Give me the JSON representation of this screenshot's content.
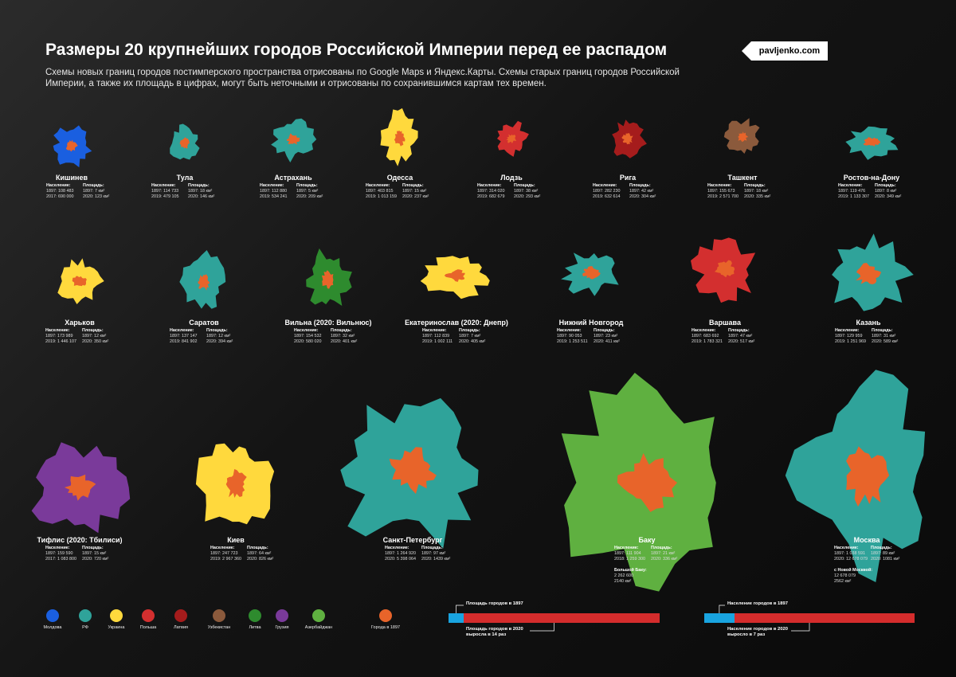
{
  "header": {
    "title": "Размеры 20 крупнейших городов Российской Империи перед ее распадом",
    "subtitle": "Схемы новых границ городов постимперского пространства отрисованы по Google Maps и Яндекс.Карты. Схемы старых границ городов Российской Империи, а также их площадь в цифрах, могут быть неточными и отрисованы по сохранившимся картам тех времен.",
    "brand": "pavljenko.com"
  },
  "colors": {
    "moldova": "#1a5fe0",
    "rf": "#2fa39a",
    "ukraine": "#ffd93d",
    "poland": "#d32f2f",
    "latvia": "#a51c1c",
    "uzbekistan": "#8b5a3c",
    "lithuania": "#2e8b2e",
    "georgia": "#7a3a9a",
    "azerbaijan": "#5fb040",
    "city1897": "#e8642a"
  },
  "labels": {
    "population": "Население:",
    "area": "Площадь:"
  },
  "cities": [
    {
      "name": "Кишинев",
      "country": "moldova",
      "pop1897": "1897: 108 483",
      "popNow": "2017: 690 000",
      "area1897": "1897: 7 км²",
      "areaNow": "2020: 123 км²"
    },
    {
      "name": "Тула",
      "country": "rf",
      "pop1897": "1897: 114 733",
      "popNow": "2019: 479 105",
      "area1897": "1897: 18 км²",
      "areaNow": "2020: 146 км²"
    },
    {
      "name": "Астрахань",
      "country": "rf",
      "pop1897": "1897: 112 880",
      "popNow": "2019: 534 241",
      "area1897": "1897: 5 км²",
      "areaNow": "2020: 209 км²"
    },
    {
      "name": "Одесса",
      "country": "ukraine",
      "pop1897": "1897: 403 815",
      "popNow": "2019: 1 013 159",
      "area1897": "1897: 15 км²",
      "areaNow": "2020: 237 км²"
    },
    {
      "name": "Лодзь",
      "country": "poland",
      "pop1897": "1897: 314 020",
      "popNow": "2019: 682 679",
      "area1897": "1897: 38 км²",
      "areaNow": "2020: 293 км²"
    },
    {
      "name": "Рига",
      "country": "latvia",
      "pop1897": "1897: 282 230",
      "popNow": "2019: 632 614",
      "area1897": "1897: 42 км²",
      "areaNow": "2020: 304 км²"
    },
    {
      "name": "Ташкент",
      "country": "uzbekistan",
      "pop1897": "1897: 155 673",
      "popNow": "2019: 2 571 700",
      "area1897": "1897: 18 км²",
      "areaNow": "2020: 335 км²"
    },
    {
      "name": "Ростов-на-Дону",
      "country": "rf",
      "pop1897": "1897: 119 476",
      "popNow": "2019: 1 133 307",
      "area1897": "1897: 8 км²",
      "areaNow": "2020: 349 км²"
    },
    {
      "name": "Харьков",
      "country": "ukraine",
      "pop1897": "1897: 173 989",
      "popNow": "2019: 1 446 107",
      "area1897": "1897: 12 км²",
      "areaNow": "2020: 350 км²"
    },
    {
      "name": "Саратов",
      "country": "rf",
      "pop1897": "1897: 137 147",
      "popNow": "2019: 841 902",
      "area1897": "1897: 12 км²",
      "areaNow": "2020: 394 км²"
    },
    {
      "name": "Вильна (2020: Вильнюс)",
      "country": "lithuania",
      "pop1897": "1897: 154 532",
      "popNow": "2020: 580 020",
      "area1897": "1897: 32 км²",
      "areaNow": "2020: 401 км²"
    },
    {
      "name": "Екатеринослав (2020: Днепр)",
      "country": "ukraine",
      "pop1897": "1897: 112 839",
      "popNow": "2019: 1 002 111",
      "area1897": "1897: 7 км²",
      "areaNow": "2020: 405 км²"
    },
    {
      "name": "Нижний Новгород",
      "country": "rf",
      "pop1897": "1897: 90 053",
      "popNow": "2019: 1 253 511",
      "area1897": "1897: 23 км²",
      "areaNow": "2020: 411 км²"
    },
    {
      "name": "Варшава",
      "country": "poland",
      "pop1897": "1897: 683 692",
      "popNow": "2019: 1 783 321",
      "area1897": "1897: 47 км²",
      "areaNow": "2020: 517 км²"
    },
    {
      "name": "Казань",
      "country": "rf",
      "pop1897": "1897: 129 959",
      "popNow": "2019: 1 251 969",
      "area1897": "1897: 31 км²",
      "areaNow": "2020: 589 км²"
    },
    {
      "name": "Тифлис (2020: Тбилиси)",
      "country": "georgia",
      "pop1897": "1897: 159 590",
      "popNow": "2017: 1 083 800",
      "area1897": "1897: 15 км²",
      "areaNow": "2020: 720 км²"
    },
    {
      "name": "Киев",
      "country": "ukraine",
      "pop1897": "1897: 247 723",
      "popNow": "2019: 2 967 360",
      "area1897": "1897: 64 км²",
      "areaNow": "2020: 826 км²"
    },
    {
      "name": "Санкт-Петербург",
      "country": "rf",
      "pop1897": "1897: 1 264 920",
      "popNow": "2020: 5 398 064",
      "area1897": "1897: 97 км²",
      "areaNow": "2020: 1439 км²"
    },
    {
      "name": "Баку",
      "country": "azerbaijan",
      "pop1897": "1897: 111 904",
      "popNow": "2018: 1 259 300",
      "area1897": "1897: 21 км²",
      "areaNow": "2020: 336 км²",
      "extraLabel": "Большой Баку:",
      "extra1": "2 262 600",
      "extra2": "2140 км²"
    },
    {
      "name": "Москва",
      "country": "rf",
      "pop1897": "1897: 1 038 591",
      "popNow": "2020: 12 678 079",
      "area1897": "1897: 89 км²",
      "areaNow": "2020: 1081 км²",
      "extraLabel": "с Новой Москвой:",
      "extra1": "12 678 079",
      "extra2": "2562 км²"
    }
  ],
  "legend": [
    {
      "key": "moldova",
      "label": "Молдова"
    },
    {
      "key": "rf",
      "label": "РФ"
    },
    {
      "key": "ukraine",
      "label": "Украина"
    },
    {
      "key": "poland",
      "label": "Польша"
    },
    {
      "key": "latvia",
      "label": "Латвия"
    },
    {
      "key": "uzbekistan",
      "label": "Узбекистан"
    },
    {
      "key": "lithuania",
      "label": "Литва"
    },
    {
      "key": "georgia",
      "label": "Грузия"
    },
    {
      "key": "azerbaijan",
      "label": "Азербайджан"
    },
    {
      "key": "city1897",
      "label": "Города в 1897"
    }
  ],
  "bars": {
    "area": {
      "top": "Площадь городов в 1897",
      "bottom1": "Площадь городов в 2020",
      "bottom2": "выросла в 14 раз",
      "ratio": 14
    },
    "population": {
      "top": "Население городов в 1897",
      "bottom1": "Население городов в 2020",
      "bottom2": "выросло в 7 раз",
      "ratio": 7
    }
  }
}
